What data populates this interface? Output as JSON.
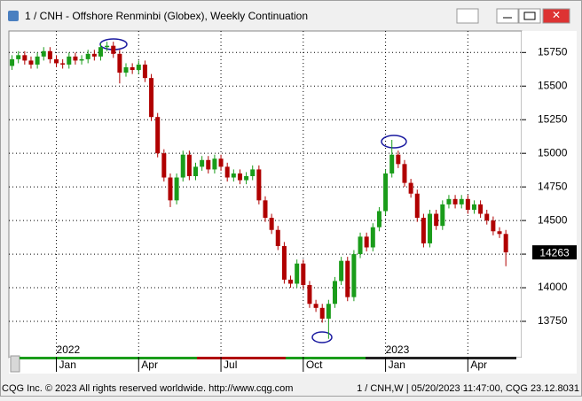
{
  "window": {
    "title": "1 / CNH - Offshore Renminbi (Globex), Weekly Continuation",
    "footer_left": "CQG Inc. © 2023 All rights reserved worldwide. http://www.cqg.com",
    "footer_right": "1 / CNH,W | 05/20/2023 11:47:00, CQG 23.12.8031"
  },
  "chart_data": {
    "type": "candlestick",
    "up_color": "#1a9c1a",
    "down_color": "#b00000",
    "grid": true,
    "ylim": [
      13480,
      15910
    ],
    "yticks": [
      13750,
      14000,
      14250,
      14500,
      14750,
      15000,
      15250,
      15500,
      15750
    ],
    "xlim": [
      -0.5,
      80.5
    ],
    "xticks": [
      {
        "value": 7,
        "label": "Jan"
      },
      {
        "value": 20,
        "label": "Apr"
      },
      {
        "value": 33,
        "label": "Jul"
      },
      {
        "value": 46,
        "label": "Oct"
      },
      {
        "value": 59,
        "label": "Jan"
      },
      {
        "value": 72,
        "label": "Apr"
      }
    ],
    "year_labels": [
      {
        "value": 7,
        "label": "2022"
      },
      {
        "value": 59,
        "label": "2023"
      }
    ],
    "open": [
      15650,
      15700,
      15730,
      15690,
      15660,
      15720,
      15760,
      15700,
      15670,
      15660,
      15720,
      15690,
      15700,
      15740,
      15720,
      15790,
      15800,
      15740,
      15600,
      15640,
      15620,
      15660,
      15560,
      15270,
      15000,
      14820,
      14650,
      14820,
      14990,
      14830,
      14900,
      14950,
      14880,
      14960,
      14900,
      14820,
      14850,
      14800,
      14830,
      14880,
      14650,
      14520,
      14430,
      14310,
      14060,
      14030,
      14180,
      14020,
      13880,
      13850,
      13770,
      13880,
      14050,
      14200,
      13930,
      14250,
      14380,
      14300,
      14450,
      14570,
      14850,
      14990,
      14920,
      14780,
      14700,
      14520,
      14330,
      14550,
      14460,
      14620,
      14660,
      14620,
      14660,
      14580,
      14620,
      14550,
      14500,
      14420,
      14400
    ],
    "high": [
      15730,
      15760,
      15760,
      15720,
      15750,
      15790,
      15790,
      15730,
      15700,
      15750,
      15750,
      15730,
      15770,
      15770,
      15820,
      15830,
      15830,
      15770,
      15670,
      15670,
      15690,
      15690,
      15590,
      15300,
      15030,
      14850,
      14850,
      15020,
      15020,
      14930,
      14980,
      14980,
      14990,
      14990,
      14930,
      14880,
      14880,
      14860,
      14910,
      14910,
      14680,
      14550,
      14460,
      14340,
      14090,
      14210,
      14210,
      14050,
      13910,
      13880,
      13910,
      14080,
      14230,
      14230,
      14280,
      14410,
      14410,
      14480,
      14600,
      14880,
      15100,
      15020,
      14950,
      14810,
      14730,
      14550,
      14580,
      14580,
      14650,
      14690,
      14690,
      14690,
      14690,
      14650,
      14650,
      14580,
      14530,
      14450,
      14430
    ],
    "low": [
      15620,
      15670,
      15660,
      15630,
      15630,
      15690,
      15670,
      15640,
      15630,
      15630,
      15660,
      15660,
      15670,
      15690,
      15690,
      15760,
      15710,
      15520,
      15570,
      15590,
      15590,
      15530,
      15240,
      14970,
      14790,
      14600,
      14620,
      14790,
      14800,
      14800,
      14870,
      14850,
      14850,
      14870,
      14790,
      14790,
      14770,
      14770,
      14800,
      14620,
      14490,
      14400,
      14280,
      14030,
      14000,
      14000,
      13990,
      13850,
      13820,
      13740,
      13620,
      13850,
      14020,
      13900,
      13900,
      14220,
      14270,
      14270,
      14420,
      14540,
      14820,
      14890,
      14750,
      14670,
      14490,
      14300,
      14300,
      14430,
      14430,
      14590,
      14590,
      14590,
      14550,
      14550,
      14520,
      14470,
      14390,
      14370,
      14160
    ],
    "close": [
      15700,
      15730,
      15690,
      15660,
      15720,
      15760,
      15700,
      15670,
      15660,
      15720,
      15690,
      15700,
      15740,
      15720,
      15790,
      15800,
      15740,
      15600,
      15640,
      15620,
      15660,
      15560,
      15270,
      15000,
      14820,
      14650,
      14820,
      14990,
      14830,
      14900,
      14950,
      14880,
      14960,
      14900,
      14820,
      14850,
      14800,
      14830,
      14880,
      14650,
      14520,
      14430,
      14310,
      14060,
      14030,
      14180,
      14020,
      13880,
      13850,
      13770,
      13880,
      14050,
      14200,
      13930,
      14250,
      14380,
      14300,
      14450,
      14570,
      14850,
      14990,
      14920,
      14780,
      14700,
      14520,
      14330,
      14550,
      14460,
      14620,
      14660,
      14620,
      14660,
      14580,
      14620,
      14550,
      14500,
      14420,
      14400,
      14263
    ]
  }
}
